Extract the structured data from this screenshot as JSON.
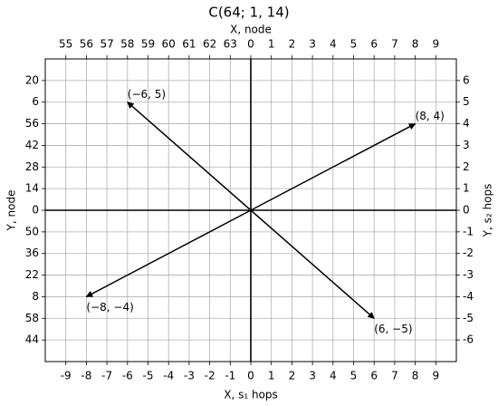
{
  "chart_data": {
    "type": "vector",
    "title": "C(64; 1, 14)",
    "xlabel": "X, s₁ hops",
    "x2label": "X, node",
    "ylabel": "Y, node",
    "y2label": "Y, s₂ hops",
    "xlim": [
      -10,
      10
    ],
    "ylim": [
      -7,
      7
    ],
    "xticks": [
      -9,
      -8,
      -7,
      -6,
      -5,
      -4,
      -3,
      -2,
      -1,
      0,
      1,
      2,
      3,
      4,
      5,
      6,
      7,
      8,
      9
    ],
    "x2ticks": [
      {
        "value": -9,
        "label": "55"
      },
      {
        "value": -8,
        "label": "56"
      },
      {
        "value": -7,
        "label": "57"
      },
      {
        "value": -6,
        "label": "58"
      },
      {
        "value": -5,
        "label": "59"
      },
      {
        "value": -4,
        "label": "60"
      },
      {
        "value": -3,
        "label": "61"
      },
      {
        "value": -2,
        "label": "62"
      },
      {
        "value": -1,
        "label": "63"
      },
      0,
      1,
      2,
      3,
      4,
      5,
      6,
      7,
      8,
      9
    ],
    "yticks": [
      {
        "value": 6,
        "label": "20"
      },
      {
        "value": 5,
        "label": "6"
      },
      {
        "value": 4,
        "label": "56"
      },
      {
        "value": 3,
        "label": "42"
      },
      {
        "value": 2,
        "label": "28"
      },
      {
        "value": 1,
        "label": "14"
      },
      0,
      {
        "value": -1,
        "label": "50"
      },
      {
        "value": -2,
        "label": "36"
      },
      {
        "value": -3,
        "label": "22"
      },
      {
        "value": -4,
        "label": "8"
      },
      {
        "value": -5,
        "label": "58"
      },
      {
        "value": -6,
        "label": "44"
      }
    ],
    "y2lim": [
      -7,
      7
    ],
    "y2ticks": [
      6,
      5,
      4,
      3,
      2,
      1,
      0,
      -1,
      -2,
      -3,
      -4,
      -5,
      -6
    ],
    "grid": true,
    "color": "#000000",
    "vectors": [
      {
        "x": -6,
        "y": 5,
        "label": "(−6, 5)"
      },
      {
        "x": 8,
        "y": 4,
        "label": "(8, 4)"
      },
      {
        "x": -8,
        "y": -4,
        "label": "(−8, −4)"
      },
      {
        "x": 6,
        "y": -5,
        "label": "(6, −5)"
      }
    ]
  }
}
